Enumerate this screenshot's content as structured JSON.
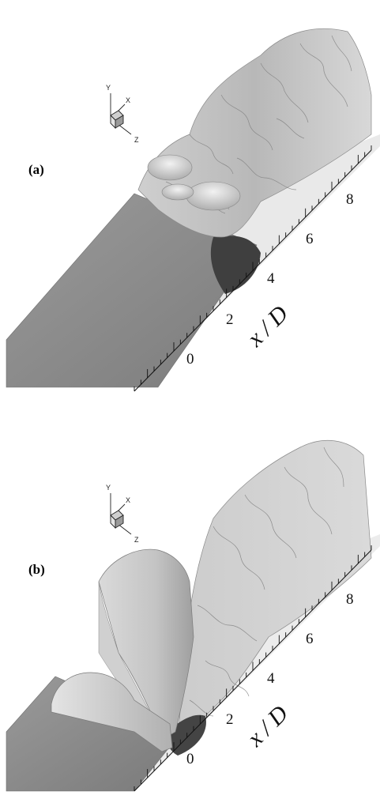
{
  "panels": [
    {
      "id": "a",
      "label": "(a)",
      "axis_title": "x / D",
      "tick_labels": [
        "0",
        "2",
        "4",
        "6",
        "8"
      ],
      "triad": {
        "x": "X",
        "y": "Y",
        "z": "Z"
      }
    },
    {
      "id": "b",
      "label": "(b)",
      "axis_title": "x / D",
      "tick_labels": [
        "0",
        "2",
        "4",
        "6",
        "8"
      ],
      "triad": {
        "x": "X",
        "y": "Y",
        "z": "Z"
      }
    }
  ],
  "colors": {
    "surface": "#8c8c8c",
    "surface_dark": "#5a5a5a",
    "roller_light": "#d4d4d4",
    "turbulence": "#bdbdbd"
  }
}
